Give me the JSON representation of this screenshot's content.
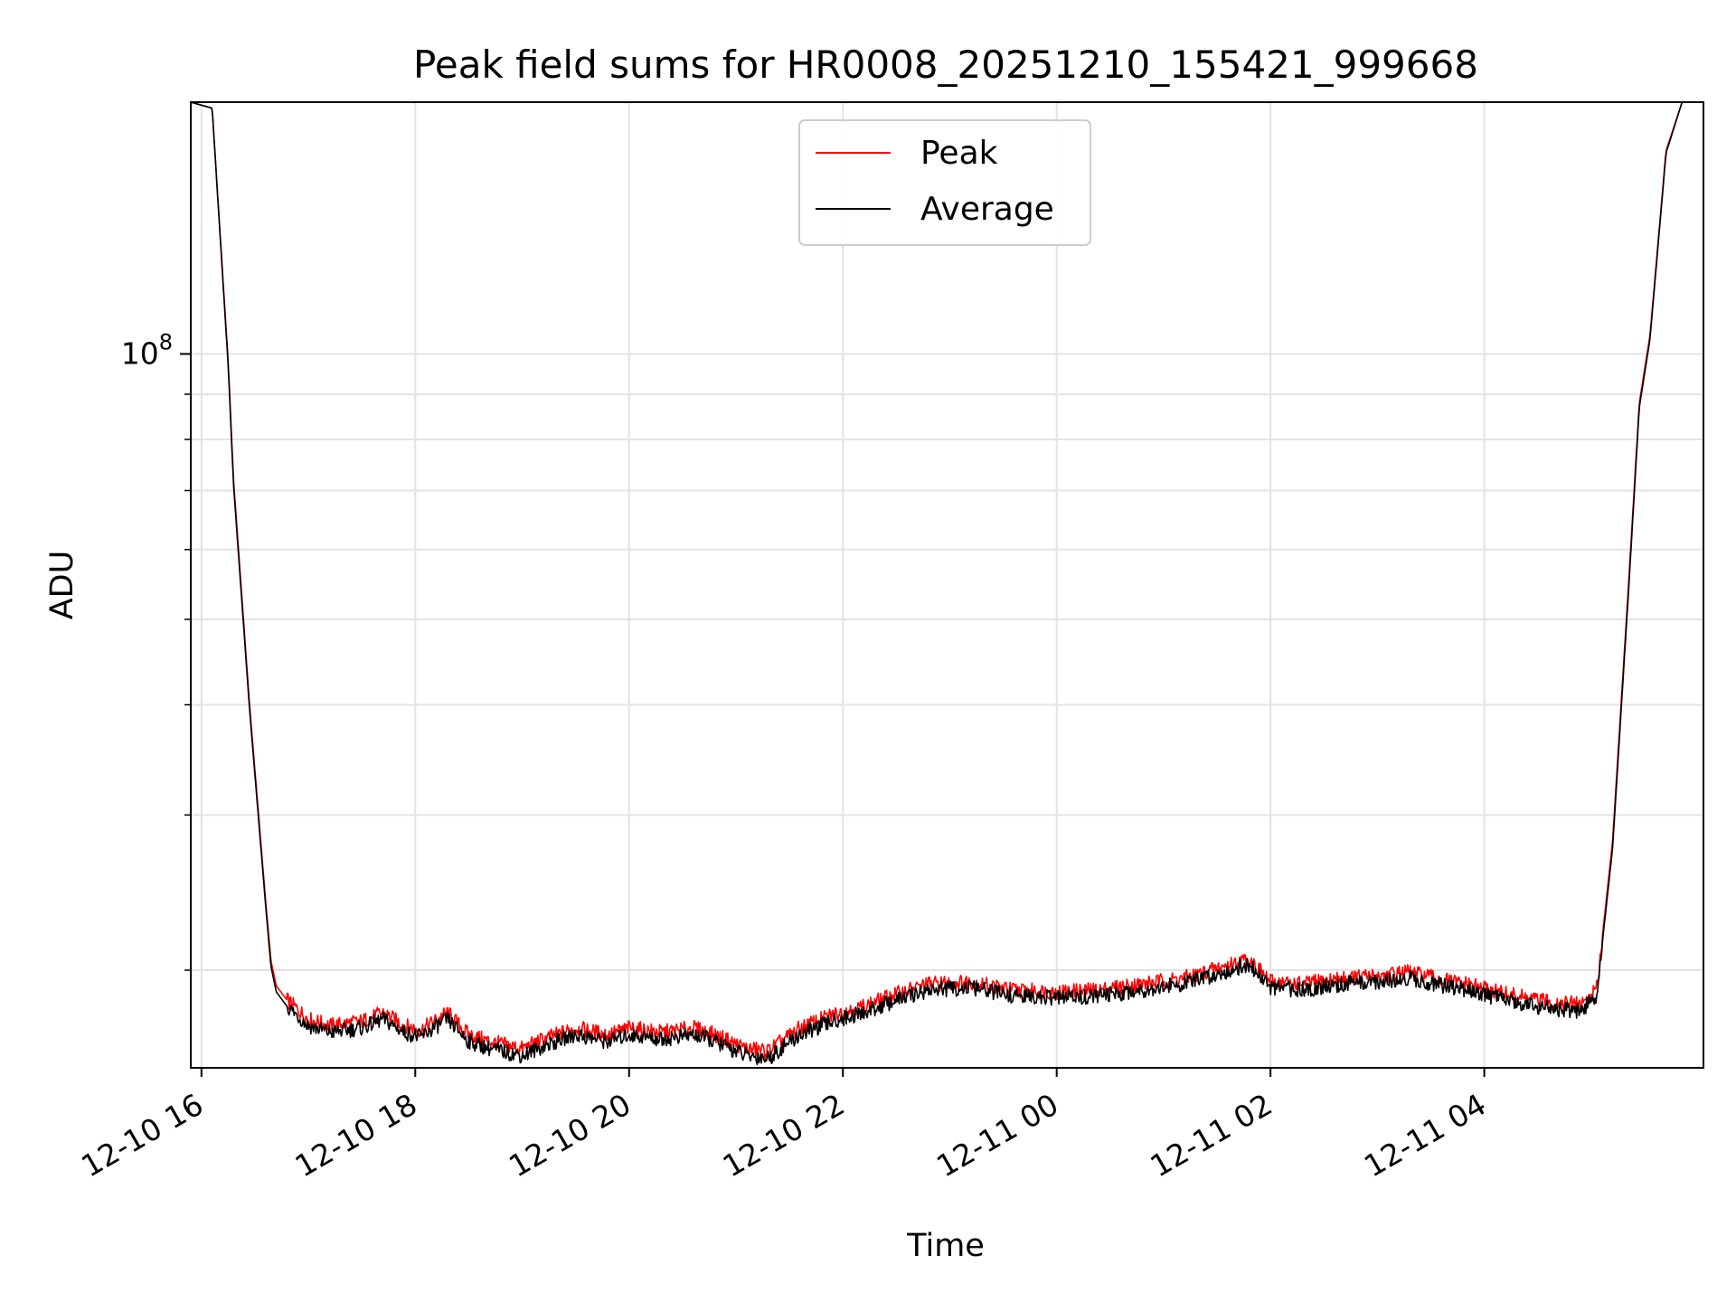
{
  "chart_data": {
    "type": "line",
    "title": "Peak field sums for HR0008_20251210_155421_999668",
    "xlabel": "Time",
    "ylabel": "ADU",
    "yscale": "log",
    "grid": true,
    "legend_position": "upper center",
    "xlim_hours": [
      -0.1,
      14.05
    ],
    "ylim": [
      15500000,
      193000000
    ],
    "x_unit": "hours since 2025-12-10 16:00",
    "x_ticks": [
      {
        "value": 0,
        "label": "12-10 16"
      },
      {
        "value": 2,
        "label": "12-10 18"
      },
      {
        "value": 4,
        "label": "12-10 20"
      },
      {
        "value": 6,
        "label": "12-10 22"
      },
      {
        "value": 8,
        "label": "12-11 00"
      },
      {
        "value": 10,
        "label": "12-11 02"
      },
      {
        "value": 12,
        "label": "12-11 04"
      }
    ],
    "y_major_ticks": [
      {
        "value": 100000000,
        "base": "10",
        "exp": "8"
      }
    ],
    "y_minor_ticks": [
      20000000,
      30000000,
      40000000,
      50000000,
      60000000,
      70000000,
      80000000,
      90000000,
      200000000
    ],
    "series": [
      {
        "name": "Peak",
        "color": "#ff0000",
        "x": [
          -0.1,
          0.1,
          0.25,
          0.3,
          0.45,
          0.6,
          0.65,
          0.7,
          0.8,
          1.0,
          1.2,
          1.5,
          1.7,
          1.9,
          2.05,
          2.3,
          2.5,
          2.7,
          3.0,
          3.2,
          3.5,
          3.8,
          4.0,
          4.3,
          4.6,
          4.75,
          4.9,
          5.1,
          5.3,
          5.6,
          5.9,
          6.2,
          6.5,
          6.8,
          7.2,
          7.6,
          8.0,
          8.4,
          8.8,
          9.2,
          9.5,
          9.8,
          10.0,
          10.3,
          10.7,
          11.0,
          11.3,
          11.6,
          11.9,
          12.2,
          12.4,
          12.6,
          12.9,
          13.05,
          13.2,
          13.35,
          13.45,
          13.55,
          13.7,
          13.85,
          14.05
        ],
        "y": [
          193000000,
          190000000,
          98000000,
          72000000,
          40000000,
          24000000,
          20500000,
          19200000,
          18500000,
          17600000,
          17300000,
          17500000,
          17900000,
          17300000,
          17100000,
          17900000,
          16900000,
          16600000,
          16300000,
          16700000,
          17200000,
          16900000,
          17200000,
          17000000,
          17200000,
          17000000,
          16700000,
          16300000,
          16200000,
          17200000,
          17800000,
          18200000,
          18800000,
          19300000,
          19400000,
          19000000,
          18900000,
          19000000,
          19300000,
          19600000,
          20100000,
          20600000,
          19400000,
          19300000,
          19600000,
          19700000,
          19900000,
          19500000,
          19200000,
          18800000,
          18600000,
          18400000,
          18300000,
          19000000,
          28000000,
          55000000,
          88000000,
          105000000,
          170000000,
          193000000,
          193000000
        ]
      },
      {
        "name": "Average",
        "color": "#000000",
        "x": [
          -0.1,
          0.1,
          0.25,
          0.3,
          0.45,
          0.6,
          0.65,
          0.7,
          0.8,
          1.0,
          1.2,
          1.5,
          1.7,
          1.9,
          2.05,
          2.3,
          2.5,
          2.7,
          3.0,
          3.2,
          3.5,
          3.8,
          4.0,
          4.3,
          4.6,
          4.75,
          4.9,
          5.1,
          5.3,
          5.6,
          5.9,
          6.2,
          6.5,
          6.8,
          7.2,
          7.6,
          8.0,
          8.4,
          8.8,
          9.2,
          9.5,
          9.8,
          10.0,
          10.3,
          10.7,
          11.0,
          11.3,
          11.6,
          11.9,
          12.2,
          12.4,
          12.6,
          12.9,
          13.05,
          13.2,
          13.35,
          13.45,
          13.55,
          13.7,
          13.85,
          14.05
        ],
        "y": [
          193000000,
          190000000,
          97000000,
          71000000,
          39500000,
          23700000,
          20200000,
          18900000,
          18200000,
          17300000,
          17000000,
          17200000,
          17600000,
          17000000,
          16800000,
          17600000,
          16600000,
          16300000,
          16000000,
          16400000,
          16900000,
          16600000,
          16900000,
          16700000,
          16900000,
          16700000,
          16400000,
          16000000,
          15900000,
          16900000,
          17500000,
          17900000,
          18500000,
          19000000,
          19100000,
          18700000,
          18600000,
          18700000,
          19000000,
          19300000,
          19800000,
          20300000,
          19100000,
          19000000,
          19300000,
          19400000,
          19600000,
          19200000,
          18900000,
          18500000,
          18300000,
          18100000,
          18000000,
          18700000,
          27500000,
          54000000,
          87000000,
          104000000,
          169000000,
          193000000,
          193000000
        ]
      }
    ]
  }
}
